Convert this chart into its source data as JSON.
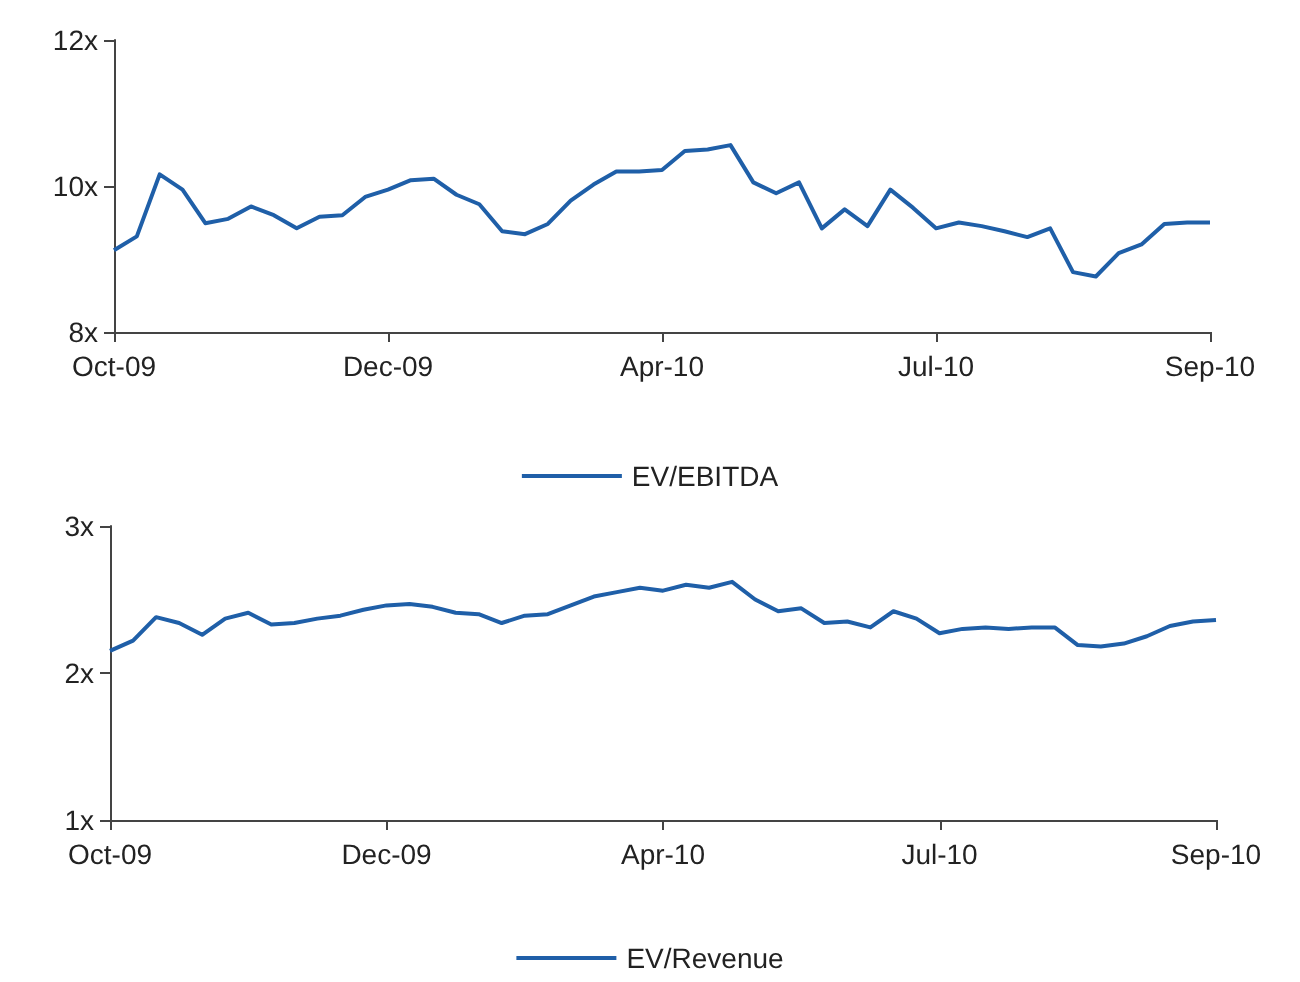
{
  "chart_data": [
    {
      "type": "line",
      "categories": [
        "Oct-09",
        null,
        null,
        null,
        null,
        null,
        null,
        null,
        null,
        null,
        null,
        null,
        "Dec-09",
        null,
        null,
        null,
        null,
        null,
        null,
        null,
        null,
        null,
        null,
        null,
        "Apr-10",
        null,
        null,
        null,
        null,
        null,
        null,
        null,
        null,
        null,
        null,
        null,
        "Jul-10",
        null,
        null,
        null,
        null,
        null,
        null,
        null,
        null,
        null,
        null,
        null,
        "Sep-10"
      ],
      "series": [
        {
          "name": "EV/EBITDA",
          "color": "#1f5fa8",
          "values": [
            9.12,
            9.31,
            10.16,
            9.95,
            9.49,
            9.55,
            9.72,
            9.6,
            9.42,
            9.58,
            9.6,
            9.85,
            9.95,
            10.08,
            10.1,
            9.88,
            9.75,
            9.38,
            9.34,
            9.48,
            9.8,
            10.02,
            10.2,
            10.2,
            10.22,
            10.48,
            10.5,
            10.56,
            10.05,
            9.9,
            10.05,
            9.42,
            9.68,
            9.45,
            9.95,
            9.7,
            9.42,
            9.5,
            9.45,
            9.38,
            9.3,
            9.42,
            8.82,
            8.76,
            9.08,
            9.2,
            9.48,
            9.5,
            9.5
          ]
        }
      ],
      "ylim": [
        8,
        12
      ],
      "yticks": [
        {
          "value": 8,
          "label": "8x"
        },
        {
          "value": 10,
          "label": "10x"
        },
        {
          "value": 12,
          "label": "12x"
        }
      ],
      "grid": false,
      "legend": "bottom",
      "marker": "none",
      "line_style": "solid"
    },
    {
      "type": "line",
      "categories": [
        "Oct-09",
        null,
        null,
        null,
        null,
        null,
        null,
        null,
        null,
        null,
        null,
        null,
        "Dec-09",
        null,
        null,
        null,
        null,
        null,
        null,
        null,
        null,
        null,
        null,
        null,
        "Apr-10",
        null,
        null,
        null,
        null,
        null,
        null,
        null,
        null,
        null,
        null,
        null,
        "Jul-10",
        null,
        null,
        null,
        null,
        null,
        null,
        null,
        null,
        null,
        null,
        null,
        "Sep-10"
      ],
      "series": [
        {
          "name": "EV/Revenue",
          "color": "#1f5fa8",
          "values": [
            2.15,
            2.22,
            2.38,
            2.34,
            2.26,
            2.37,
            2.41,
            2.33,
            2.34,
            2.37,
            2.39,
            2.43,
            2.46,
            2.47,
            2.45,
            2.41,
            2.4,
            2.34,
            2.39,
            2.4,
            2.46,
            2.52,
            2.55,
            2.58,
            2.56,
            2.6,
            2.58,
            2.62,
            2.5,
            2.42,
            2.44,
            2.34,
            2.35,
            2.31,
            2.42,
            2.37,
            2.27,
            2.3,
            2.31,
            2.3,
            2.31,
            2.31,
            2.19,
            2.18,
            2.2,
            2.25,
            2.32,
            2.35,
            2.36
          ]
        }
      ],
      "ylim": [
        1,
        3
      ],
      "yticks": [
        {
          "value": 1,
          "label": "1x"
        },
        {
          "value": 2,
          "label": "2x"
        },
        {
          "value": 3,
          "label": "3x"
        }
      ],
      "grid": false,
      "legend": "bottom",
      "marker": "none",
      "line_style": "solid"
    }
  ]
}
